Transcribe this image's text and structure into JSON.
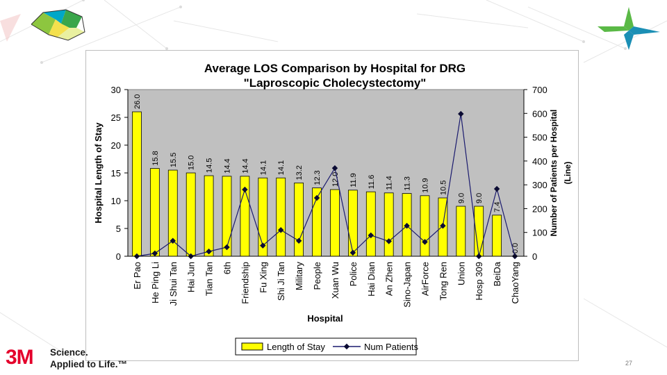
{
  "slide": {
    "brand_logo": "3M",
    "brand_tagline_line1": "Science.",
    "brand_tagline_line2": "Applied to Life.™",
    "page_number": "27"
  },
  "colors": {
    "plot_bg": "#c0c0c0",
    "bar_fill": "#ffff00",
    "bar_stroke": "#000000",
    "line_color": "#1a1a6e",
    "marker_color": "#0b0b33",
    "brand_red": "#e4002b"
  },
  "chart_data": {
    "type": "bar",
    "title_line1": "Average LOS Comparison by Hospital for DRG",
    "title_line2": "\"Laproscopic Cholecystectomy\"",
    "xlabel": "Hospital",
    "ylabel": "Hospital Length of Stay",
    "y2label_line1": "Number of Patients per Hospital",
    "y2label_line2": "(Line)",
    "ylim": [
      0,
      30
    ],
    "yticks": [
      0,
      5,
      10,
      15,
      20,
      25,
      30
    ],
    "y2lim": [
      0,
      700
    ],
    "y2ticks": [
      0,
      100,
      200,
      300,
      400,
      500,
      600,
      700
    ],
    "categories": [
      "Er Pao",
      "He Ping Li",
      "Ji Shui Tan",
      "Hai Jun",
      "Tian Tan",
      "6th",
      "Friendship",
      "Fu Xing",
      "Shi Ji Tan",
      "Military",
      "People",
      "Xuan Wu",
      "Police",
      "Hai Dian",
      "An Zhen",
      "Sino-Japan",
      "AirForce",
      "Tong Ren",
      "Union",
      "Hosp 309",
      "BeiDa",
      "ChaoYang"
    ],
    "series": [
      {
        "name": "Length of Stay",
        "kind": "bar",
        "axis": "left",
        "values": [
          26.0,
          15.8,
          15.5,
          15.0,
          14.5,
          14.4,
          14.4,
          14.1,
          14.1,
          13.2,
          12.3,
          12.0,
          11.9,
          11.6,
          11.4,
          11.3,
          10.9,
          10.5,
          9.0,
          9.0,
          7.4,
          0.0
        ],
        "labels": [
          "26.0",
          "15.8",
          "15.5",
          "15.0",
          "14.5",
          "14.4",
          "14.4",
          "14.1",
          "14.1",
          "13.2",
          "12.3",
          "12.0",
          "11.9",
          "11.6",
          "11.4",
          "11.3",
          "10.9",
          "10.5",
          "9.0",
          "9.0",
          "7.4",
          "0.0"
        ]
      },
      {
        "name": "Num Patients",
        "kind": "line",
        "axis": "right",
        "values": [
          0,
          12,
          65,
          0,
          20,
          38,
          280,
          45,
          110,
          65,
          245,
          370,
          15,
          88,
          63,
          128,
          60,
          128,
          598,
          0,
          283,
          0
        ]
      }
    ],
    "legend_position": "bottom"
  }
}
